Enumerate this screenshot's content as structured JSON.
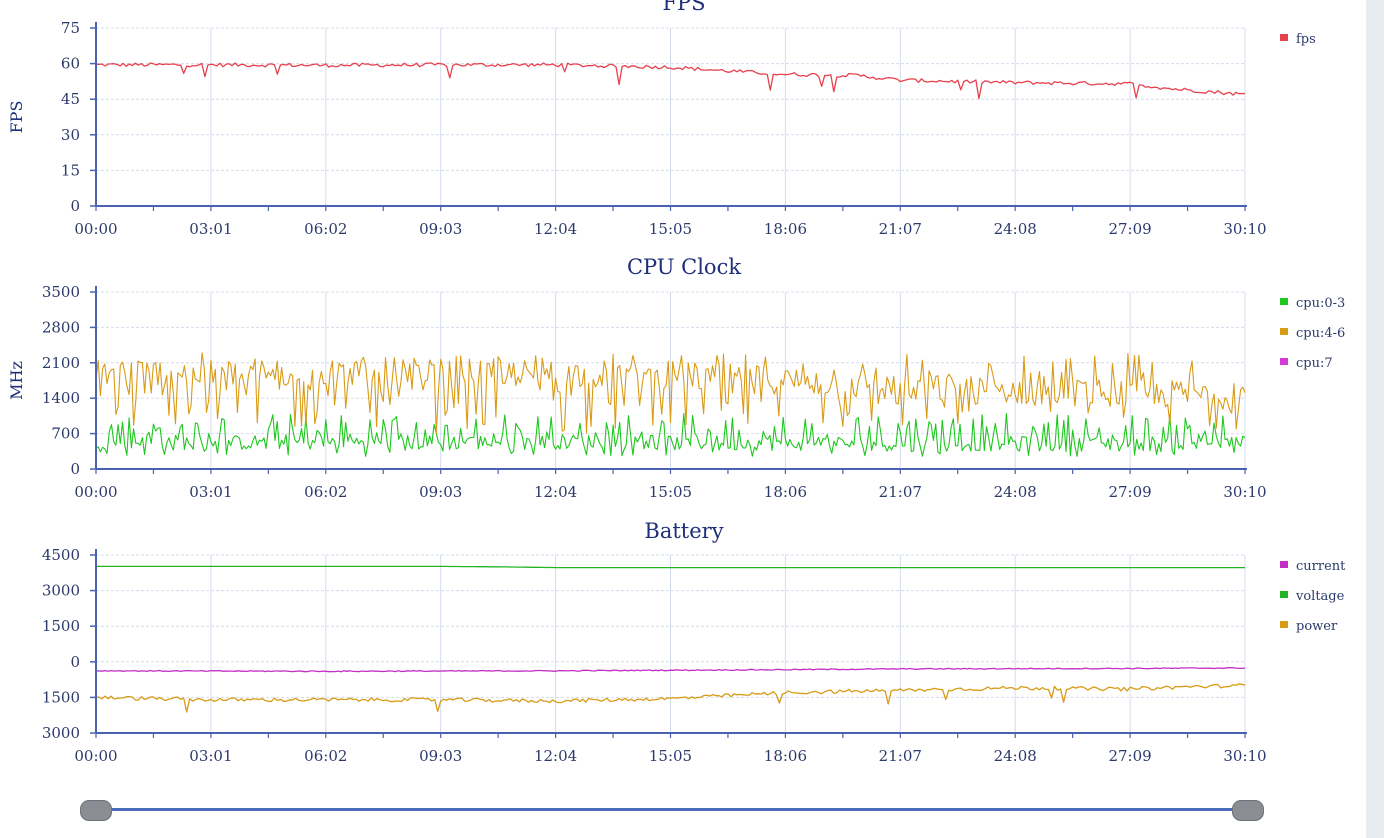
{
  "chart_data": [
    {
      "type": "line",
      "title": "FPS",
      "ylabel": "FPS",
      "xlabel": "",
      "ylim": [
        0,
        75
      ],
      "yticks": [
        0,
        15,
        30,
        45,
        60,
        75
      ],
      "x_tick_labels": [
        "00:00",
        "03:01",
        "06:02",
        "09:03",
        "12:04",
        "15:05",
        "18:06",
        "21:07",
        "24:08",
        "27:09",
        "30:10"
      ],
      "grid": true,
      "legend_position": "right",
      "series": [
        {
          "name": "fps",
          "color": "#e8404d",
          "x": [
            "00:00",
            "03:01",
            "06:02",
            "09:03",
            "12:04",
            "15:05",
            "16:30",
            "18:06",
            "20:00",
            "21:07",
            "24:08",
            "27:09",
            "28:10",
            "30:10"
          ],
          "values": [
            59.5,
            59.5,
            59.3,
            59.5,
            59.5,
            58.5,
            57,
            55.5,
            55,
            53,
            52,
            51.5,
            49.5,
            47
          ]
        }
      ]
    },
    {
      "type": "line",
      "title": "CPU Clock",
      "ylabel": "MHz",
      "xlabel": "",
      "ylim": [
        0,
        3500
      ],
      "yticks": [
        0,
        700,
        1400,
        2100,
        2800,
        3500
      ],
      "x_tick_labels": [
        "00:00",
        "03:01",
        "06:02",
        "09:03",
        "12:04",
        "15:05",
        "18:06",
        "21:07",
        "24:08",
        "27:09",
        "30:10"
      ],
      "grid": true,
      "legend_position": "right",
      "series": [
        {
          "name": "cpu:0-3",
          "color": "#1ec71e",
          "x": [
            "00:00",
            "03:01",
            "06:02",
            "09:03",
            "12:04",
            "15:05",
            "18:06",
            "21:07",
            "24:08",
            "27:09",
            "30:10"
          ],
          "values": [
            550,
            520,
            530,
            520,
            540,
            520,
            510,
            500,
            500,
            500,
            520
          ],
          "range": [
            250,
            1100
          ]
        },
        {
          "name": "cpu:4-6",
          "color": "#d99a16",
          "x": [
            "00:00",
            "03:01",
            "06:02",
            "09:03",
            "12:04",
            "15:05",
            "18:06",
            "21:07",
            "24:08",
            "27:09",
            "30:10"
          ],
          "values": [
            1950,
            1900,
            1950,
            1900,
            1900,
            1850,
            1750,
            1600,
            1550,
            1500,
            1450
          ],
          "range": [
            700,
            2300
          ]
        },
        {
          "name": "cpu:7",
          "color": "#d63ad6",
          "x": [],
          "values": []
        }
      ]
    },
    {
      "type": "line",
      "title": "Battery",
      "ylabel": "",
      "xlabel": "",
      "ylim": [
        -3000,
        4500
      ],
      "yticks": [
        -3000,
        -1500,
        0,
        1500,
        3000,
        4500
      ],
      "ytick_labels": [
        "3000",
        "1500",
        "0",
        "1500",
        "3000",
        "4500"
      ],
      "x_tick_labels": [
        "00:00",
        "03:01",
        "06:02",
        "09:03",
        "12:04",
        "15:05",
        "18:06",
        "21:07",
        "24:08",
        "27:09",
        "30:10"
      ],
      "grid": true,
      "legend_position": "right",
      "series": [
        {
          "name": "current",
          "color": "#c42ec4",
          "x": [
            "00:00",
            "06:02",
            "12:04",
            "18:06",
            "21:07",
            "24:08",
            "27:09",
            "30:10"
          ],
          "values": [
            -380,
            -400,
            -380,
            -330,
            -300,
            -290,
            -280,
            -260
          ]
        },
        {
          "name": "voltage",
          "color": "#24b324",
          "x": [
            "00:00",
            "09:03",
            "10:40",
            "12:04",
            "18:06",
            "24:08",
            "30:10"
          ],
          "values": [
            4020,
            4020,
            4000,
            3970,
            3970,
            3970,
            3970
          ]
        },
        {
          "name": "power",
          "color": "#d99a16",
          "x": [
            "00:00",
            "03:01",
            "06:02",
            "09:03",
            "12:04",
            "15:05",
            "18:06",
            "21:07",
            "24:08",
            "27:09",
            "28:40",
            "30:10"
          ],
          "values": [
            -1500,
            -1600,
            -1600,
            -1600,
            -1650,
            -1550,
            -1300,
            -1200,
            -1100,
            -1150,
            -1050,
            -1000
          ]
        }
      ]
    }
  ]
}
